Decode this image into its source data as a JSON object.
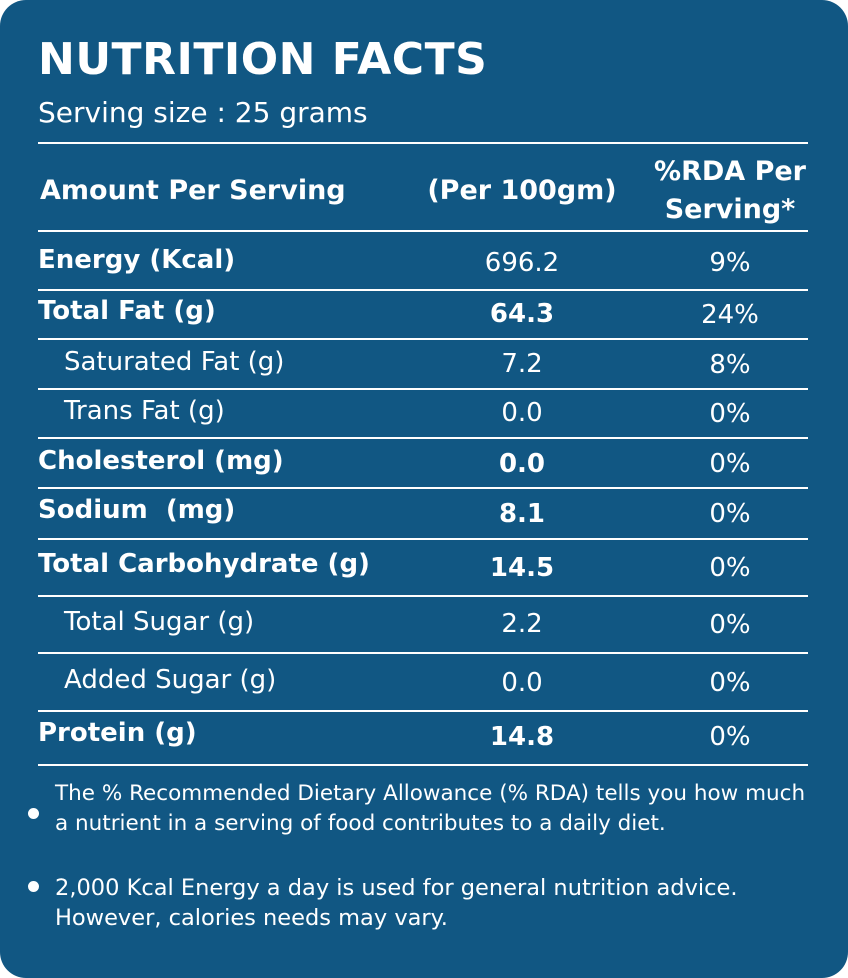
{
  "title": "NUTRITION FACTS",
  "serving_size": "Serving size : 25 grams",
  "header": {
    "col1": "Amount Per Serving",
    "col2": "(Per 100gm)",
    "col3_line1": "%RDA Per",
    "col3_line2": "Serving*"
  },
  "rows": [
    {
      "name": "Energy (Kcal)",
      "per100": "696.2",
      "rda": "9%"
    },
    {
      "name": "Total Fat (g)",
      "per100": "64.3",
      "rda": "24%"
    },
    {
      "name": "Saturated Fat (g)",
      "per100": "7.2",
      "rda": "8%"
    },
    {
      "name": "Trans Fat (g)",
      "per100": "0.0",
      "rda": "0%"
    },
    {
      "name": "Cholesterol (mg)",
      "per100": "0.0",
      "rda": "0%"
    },
    {
      "name": "Sodium  (mg)",
      "per100": "8.1",
      "rda": "0%"
    },
    {
      "name": "Total Carbohydrate (g)",
      "per100": "14.5",
      "rda": "0%"
    },
    {
      "name": "Total Sugar (g)",
      "per100": "2.2",
      "rda": "0%"
    },
    {
      "name": "Added Sugar (g)",
      "per100": "0.0",
      "rda": "0%"
    },
    {
      "name": "Protein (g)",
      "per100": "14.8",
      "rda": "0%"
    }
  ],
  "notes": [
    {
      "line1": "The % Recommended Dietary Allowance (% RDA) tells you how much",
      "line2": "a nutrient in a serving of food contributes to a daily diet."
    },
    {
      "line1": "2,000 Kcal Energy a day is used for general nutrition advice.",
      "line2": "However, calories needs may vary."
    }
  ],
  "colors": {
    "background": "#115783",
    "text": "#ffffff"
  }
}
